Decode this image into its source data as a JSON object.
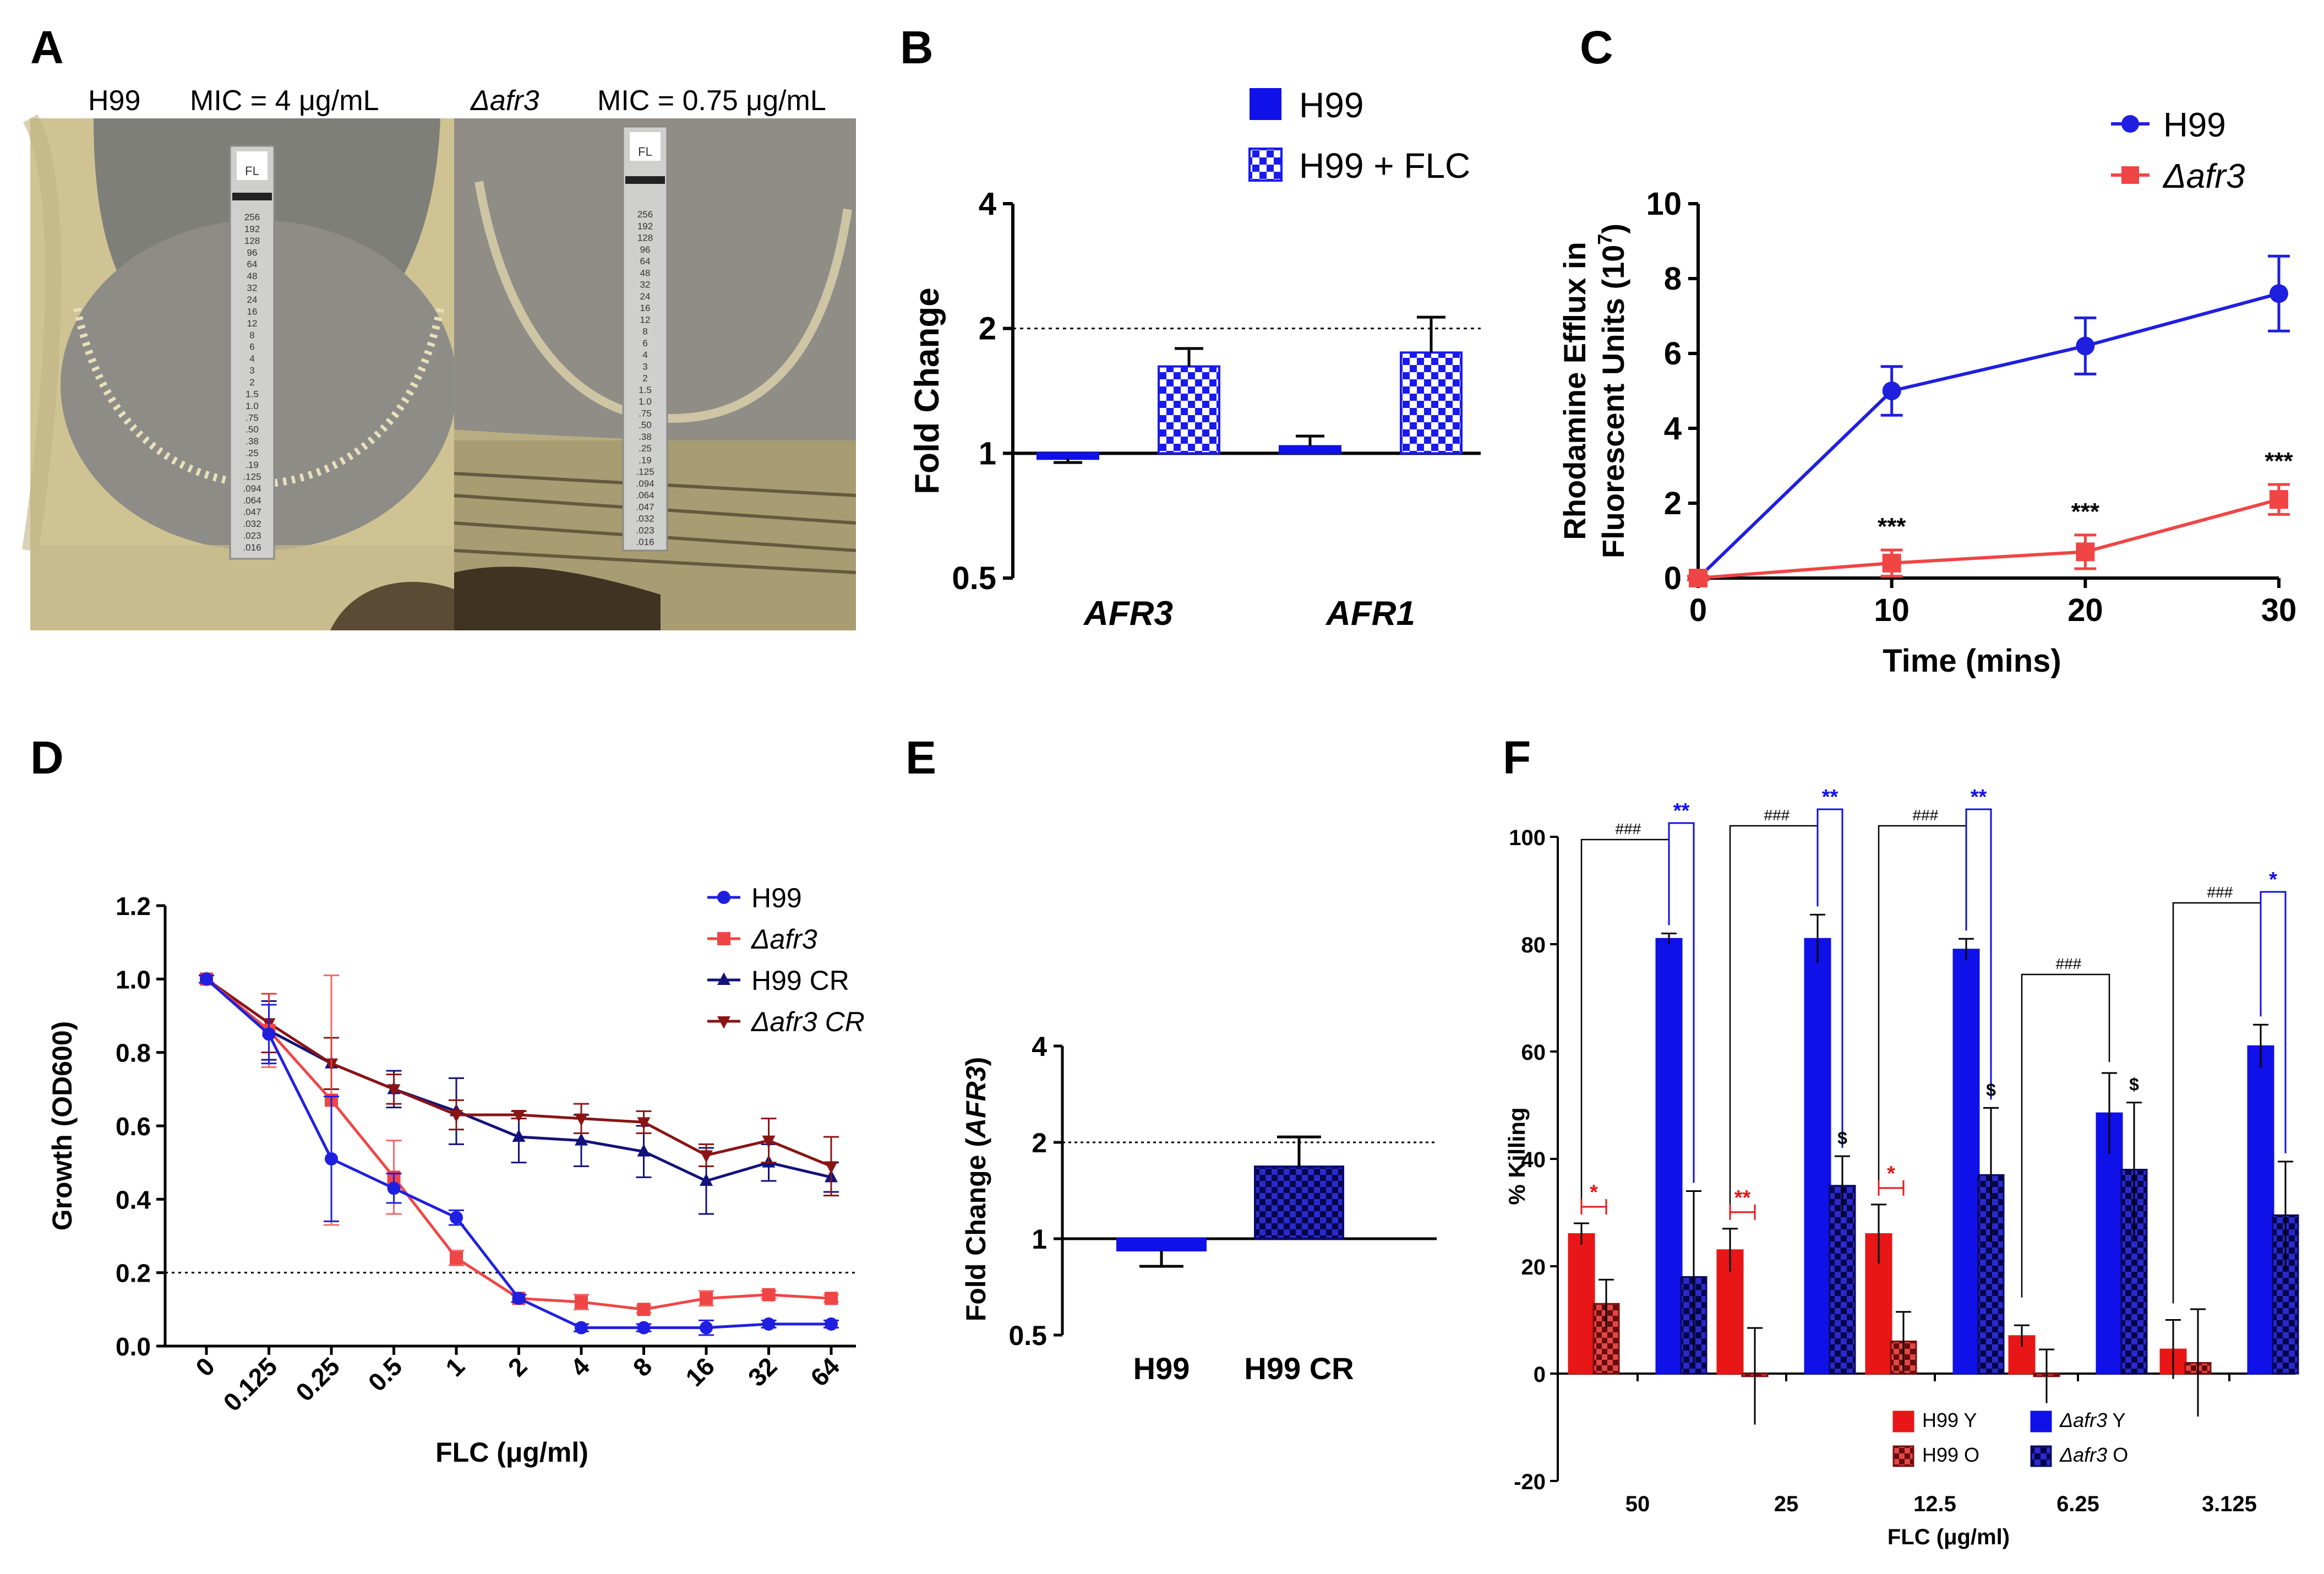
{
  "panels": {
    "a": {
      "letter": "A",
      "left_strain": "H99",
      "left_mic": "MIC = 4 μg/mL",
      "right_strain": "Δafr3",
      "right_mic": "MIC = 0.75 μg/mL",
      "strip_brand": "FL",
      "strip_ticks_left": [
        "256",
        "192",
        "128",
        "96",
        "64",
        "48",
        "32",
        "24",
        "16",
        "12",
        "8",
        "6",
        "4",
        "3",
        "2",
        "1.5",
        "1.0",
        ".75",
        ".50",
        ".38",
        ".25",
        ".19",
        ".125",
        ".094",
        ".064",
        ".047",
        ".032",
        ".023",
        ".016"
      ],
      "strip_ticks_right": [
        "256",
        "192",
        "128",
        "96",
        "64",
        "48",
        "32",
        "24",
        "16",
        "12",
        "8",
        "6",
        "4",
        "3",
        "2",
        "1.5",
        "1.0",
        ".75",
        ".50",
        ".38",
        ".25",
        ".19",
        ".125",
        ".094",
        ".064",
        ".047",
        ".032",
        ".023",
        ".016"
      ]
    },
    "b": {
      "letter": "B"
    },
    "c": {
      "letter": "C"
    },
    "d": {
      "letter": "D"
    },
    "e": {
      "letter": "E"
    },
    "f": {
      "letter": "F"
    }
  },
  "colors": {
    "h99_blue": "#1f1fe0",
    "afr3_red": "#f04545",
    "navy": "#12127a",
    "darkred": "#8a1414",
    "bar_blue": "#1010e8",
    "bar_red": "#e81616",
    "bar_navy": "#0a0a80",
    "bar_darkred": "#8a1010"
  },
  "chart_data": [
    {
      "id": "B",
      "type": "bar",
      "ylabel": "Fold Change",
      "yscale": "log2",
      "ylim": [
        0.5,
        4
      ],
      "yticks": [
        "0.5",
        "1",
        "2",
        "4"
      ],
      "reference_line": 2,
      "categories": [
        "AFR3",
        "AFR1"
      ],
      "series": [
        {
          "name": "H99",
          "values": [
            0.97,
            1.04
          ],
          "errors": [
            0.02,
            0.06
          ],
          "pattern": "solid"
        },
        {
          "name": "H99 + FLC",
          "values": [
            1.62,
            1.75
          ],
          "errors": [
            0.17,
            0.38
          ],
          "pattern": "checker"
        }
      ]
    },
    {
      "id": "C",
      "type": "line",
      "xlabel": "Time (mins)",
      "ylabel_line1": "Rhodamine Efflux in",
      "ylabel_line2": "Fluorescent Units (10",
      "ylabel_sup": "7",
      "ylabel_close": ")",
      "xlim": [
        0,
        30
      ],
      "ylim": [
        0,
        10
      ],
      "xticks": [
        "0",
        "10",
        "20",
        "30"
      ],
      "yticks": [
        "0",
        "2",
        "4",
        "6",
        "8",
        "10"
      ],
      "x": [
        0,
        10,
        20,
        30
      ],
      "series": [
        {
          "name": "H99",
          "values": [
            0,
            5.0,
            6.2,
            7.6
          ],
          "errors": [
            0.05,
            0.65,
            0.75,
            1.0
          ],
          "marker": "circle"
        },
        {
          "name": "Δafr3",
          "values": [
            0,
            0.4,
            0.7,
            2.1
          ],
          "errors": [
            0.05,
            0.35,
            0.45,
            0.4
          ],
          "marker": "square"
        }
      ],
      "annotations": [
        "***",
        "***",
        "***"
      ]
    },
    {
      "id": "D",
      "type": "line",
      "xlabel": "FLC (μg/ml)",
      "ylabel": "Growth (OD600)",
      "ylim": [
        0,
        1.2
      ],
      "yticks": [
        "0.0",
        "0.2",
        "0.4",
        "0.6",
        "0.8",
        "1.0",
        "1.2"
      ],
      "categories": [
        "0",
        "0.125",
        "0.25",
        "0.5",
        "1",
        "2",
        "4",
        "8",
        "16",
        "32",
        "64"
      ],
      "reference_line": 0.2,
      "series": [
        {
          "name": "H99",
          "values": [
            1.0,
            0.85,
            0.51,
            0.43,
            0.35,
            0.13,
            0.05,
            0.05,
            0.05,
            0.06,
            0.06
          ],
          "errors": [
            0.01,
            0.08,
            0.17,
            0.04,
            0.02,
            0.01,
            0.01,
            0.01,
            0.02,
            0.01,
            0.01
          ],
          "marker": "circle"
        },
        {
          "name": "Δafr3",
          "values": [
            1.0,
            0.86,
            0.67,
            0.46,
            0.24,
            0.13,
            0.12,
            0.1,
            0.13,
            0.14,
            0.13
          ],
          "errors": [
            0.01,
            0.1,
            0.34,
            0.1,
            0.02,
            0.01,
            0.02,
            0.01,
            0.02,
            0.01,
            0.01
          ],
          "marker": "square"
        },
        {
          "name": "H99 CR",
          "values": [
            1.0,
            0.86,
            0.77,
            0.7,
            0.64,
            0.57,
            0.56,
            0.53,
            0.45,
            0.5,
            0.46
          ],
          "errors": [
            0.01,
            0.08,
            0.07,
            0.05,
            0.09,
            0.07,
            0.07,
            0.07,
            0.09,
            0.05,
            0.04
          ],
          "marker": "triangle-up"
        },
        {
          "name": "Δafr3 CR",
          "values": [
            1.0,
            0.88,
            0.77,
            0.7,
            0.63,
            0.63,
            0.62,
            0.61,
            0.52,
            0.56,
            0.49
          ],
          "errors": [
            0.01,
            0.08,
            0.07,
            0.04,
            0.04,
            0.01,
            0.04,
            0.03,
            0.03,
            0.06,
            0.08
          ],
          "marker": "triangle-down"
        }
      ]
    },
    {
      "id": "E",
      "type": "bar",
      "ylabel_prefix": "Fold Change (",
      "ylabel_italic": "AFR3",
      "ylabel_suffix": ")",
      "yscale": "log2",
      "ylim": [
        0.5,
        4
      ],
      "yticks": [
        "0.5",
        "1",
        "2",
        "4"
      ],
      "reference_line": 2,
      "categories": [
        "H99",
        "H99 CR"
      ],
      "values": [
        0.92,
        1.68
      ],
      "errors": [
        0.1,
        0.4
      ],
      "patterns": [
        "solid",
        "checker"
      ]
    },
    {
      "id": "F",
      "type": "bar",
      "xlabel": "FLC (μg/ml)",
      "ylabel": "% Killing",
      "ylim": [
        -20,
        100
      ],
      "yticks": [
        "-20",
        "0",
        "20",
        "40",
        "60",
        "80",
        "100"
      ],
      "categories": [
        "50",
        "25",
        "12.5",
        "6.25",
        "3.125"
      ],
      "series": [
        {
          "name": "H99 Y",
          "legend_prefix": "H99",
          "legend_suffix": " Y",
          "values": [
            26,
            23,
            26,
            7,
            4.5
          ],
          "errors": [
            2,
            4,
            5.5,
            2,
            5.5
          ]
        },
        {
          "name": "H99 O",
          "legend_prefix": "H99",
          "legend_suffix": " O",
          "values": [
            13,
            -0.5,
            6,
            -0.5,
            2
          ],
          "errors": [
            4.5,
            9,
            5.5,
            5,
            10
          ]
        },
        {
          "name": "Δafr3 Y",
          "legend_prefix": "Δafr3",
          "legend_suffix": " Y",
          "values": [
            81,
            81,
            79,
            48.5,
            61
          ],
          "errors": [
            1,
            4.5,
            2,
            7.5,
            4
          ]
        },
        {
          "name": "Δafr3 O",
          "legend_prefix": "Δafr3",
          "legend_suffix": " O",
          "values": [
            18,
            35,
            37,
            38,
            29.5
          ],
          "errors": [
            16,
            5.5,
            12.5,
            12.5,
            10
          ]
        }
      ],
      "annotations": {
        "hash": "###",
        "dollar": "$",
        "red_stars": [
          "*",
          "**",
          "*"
        ],
        "blue_stars": [
          "**",
          "**",
          "**",
          "*"
        ]
      }
    }
  ]
}
